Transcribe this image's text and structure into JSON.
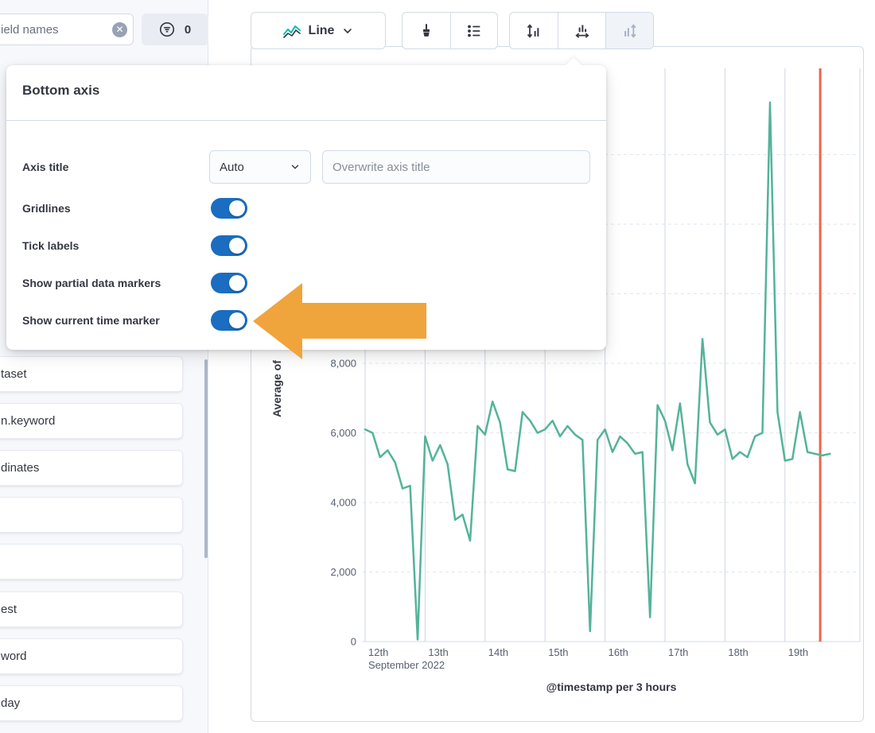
{
  "colors": {
    "series_green": "#54b399",
    "marker_red": "#e7664c",
    "toggle_blue": "#1a6dc0",
    "arrow_orange": "#f0a43c",
    "text_dark": "#343741"
  },
  "icons": {
    "clear": "✕"
  },
  "field_search": {
    "placeholder": "ield names",
    "filter_count": "0"
  },
  "toolbar": {
    "chart_type_label": "Line"
  },
  "popover": {
    "title": "Bottom axis",
    "axis_title_label": "Axis title",
    "axis_title_select_value": "Auto",
    "axis_title_placeholder": "Overwrite axis title",
    "toggles": [
      {
        "label": "Gridlines",
        "on": true
      },
      {
        "label": "Tick labels",
        "on": true
      },
      {
        "label": "Show partial data markers",
        "on": true
      },
      {
        "label": "Show current time marker",
        "on": true
      }
    ]
  },
  "sidebar": {
    "fields": [
      "taset",
      "n.keyword",
      "dinates",
      "",
      "",
      "est",
      "word",
      "day"
    ]
  },
  "chart_data": {
    "type": "line",
    "title": "",
    "xlabel": "@timestamp per 3 hours",
    "ylabel": "Average of",
    "x_tick_labels": [
      "12th",
      "13th",
      "14th",
      "15th",
      "16th",
      "17th",
      "18th",
      "19th"
    ],
    "x_context_label": "September 2022",
    "interval_hours": 3,
    "y_ticks": [
      0,
      2000,
      4000,
      6000,
      8000
    ],
    "y_grid_max": 14000,
    "ylim": [
      0,
      16000
    ],
    "grid": true,
    "series": [
      {
        "name": "Average",
        "color": "#54b399",
        "values": [
          6100,
          6000,
          5300,
          5500,
          5150,
          4400,
          4480,
          60,
          5900,
          5200,
          5650,
          5100,
          3500,
          3650,
          2900,
          6200,
          5950,
          6900,
          6300,
          4950,
          4900,
          6600,
          6350,
          6000,
          6100,
          6350,
          5900,
          6200,
          5950,
          5800,
          300,
          5800,
          6100,
          5450,
          5900,
          5700,
          5400,
          5450,
          700,
          6800,
          6350,
          5500,
          6850,
          5100,
          4550,
          8700,
          6300,
          5950,
          6100,
          5250,
          5450,
          5300,
          5900,
          6000,
          15500,
          6600,
          5200,
          5250,
          6600,
          5450,
          5400,
          5350,
          5400
        ]
      }
    ],
    "current_time_marker": {
      "color": "#e7664c",
      "x_index": 60.7
    }
  }
}
